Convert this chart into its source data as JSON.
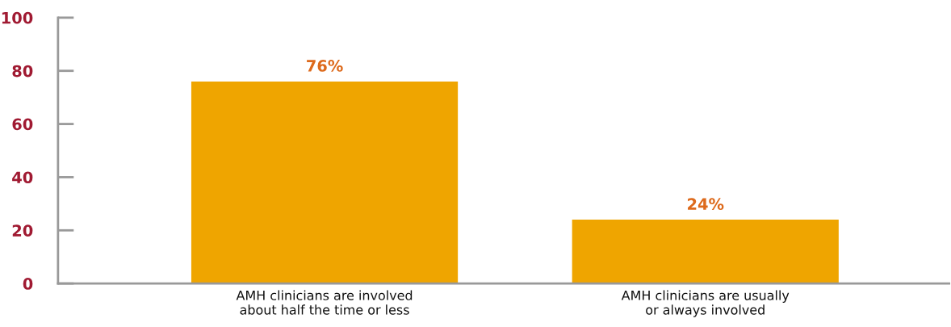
{
  "chart_data": {
    "type": "bar",
    "categories": [
      "AMH clinicians are involved\nabout half the time or less",
      "AMH clinicians are usually\nor always involved"
    ],
    "values": [
      76,
      24
    ],
    "value_labels": [
      "76%",
      "24%"
    ],
    "color": "#efa500",
    "ylim": [
      0,
      100
    ],
    "yticks": [
      0,
      20,
      40,
      60,
      80,
      100
    ],
    "grid": false,
    "legend": false
  }
}
